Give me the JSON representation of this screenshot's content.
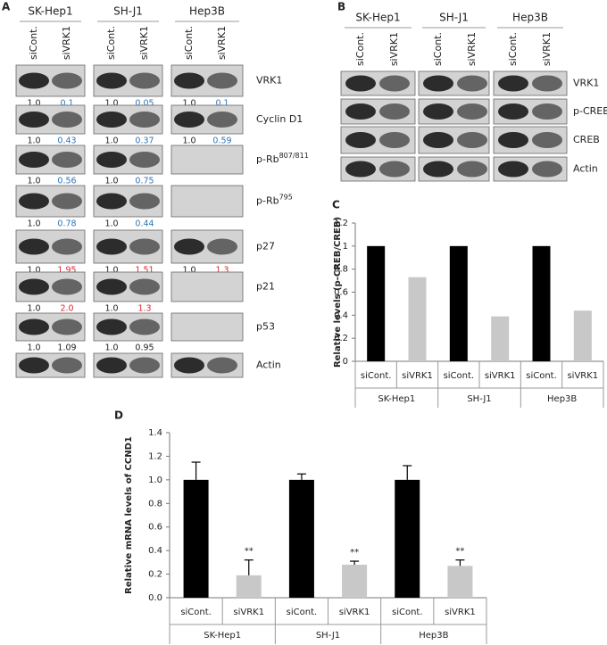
{
  "panel_a": {
    "label": "A",
    "groups": [
      {
        "name": "SK-Hep1",
        "lanes": [
          "siCont.",
          "siVRK1"
        ]
      },
      {
        "name": "SH-J1",
        "lanes": [
          "siCont.",
          "siVRK1"
        ]
      },
      {
        "name": "Hep3B",
        "lanes": [
          "siCont.",
          "siVRK1"
        ]
      }
    ],
    "rows": [
      {
        "name": "VRK1",
        "color": "#2e75b6",
        "quant": [
          [
            "1.0",
            "0.1"
          ],
          [
            "1.0",
            "0.05"
          ],
          [
            "1.0",
            "0.1"
          ]
        ]
      },
      {
        "name": "Cyclin D1",
        "color": "#2e75b6",
        "quant": [
          [
            "1.0",
            "0.43"
          ],
          [
            "1.0",
            "0.37"
          ],
          [
            "1.0",
            "0.59"
          ]
        ]
      },
      {
        "name": "p-Rb",
        "sup": "807/811",
        "color": "#2e75b6",
        "quant": [
          [
            "1.0",
            "0.56"
          ],
          [
            "1.0",
            "0.75"
          ],
          null
        ]
      },
      {
        "name": "p-Rb",
        "sup": "795",
        "color": "#2e75b6",
        "quant": [
          [
            "1.0",
            "0.78"
          ],
          [
            "1.0",
            "0.44"
          ],
          null
        ]
      },
      {
        "name": "p27",
        "color": "#e0262b",
        "quant": [
          [
            "1.0",
            "1.95"
          ],
          [
            "1.0",
            "1.51"
          ],
          [
            "1.0",
            "1.3"
          ]
        ]
      },
      {
        "name": "p21",
        "color": "#e0262b",
        "quant": [
          [
            "1.0",
            "2.0"
          ],
          [
            "1.0",
            "1.3"
          ],
          null
        ]
      },
      {
        "name": "p53",
        "color": "#222222",
        "quant": [
          [
            "1.0",
            "1.09"
          ],
          [
            "1.0",
            "0.95"
          ],
          null
        ]
      },
      {
        "name": "Actin"
      }
    ]
  },
  "panel_b": {
    "label": "B",
    "groups": [
      {
        "name": "SK-Hep1",
        "lanes": [
          "siCont.",
          "siVRK1"
        ]
      },
      {
        "name": "SH-J1",
        "lanes": [
          "siCont.",
          "siVRK1"
        ]
      },
      {
        "name": "Hep3B",
        "lanes": [
          "siCont.",
          "siVRK1"
        ]
      }
    ],
    "rows": [
      {
        "name": "VRK1"
      },
      {
        "name": "p-CREB"
      },
      {
        "name": "CREB"
      },
      {
        "name": "Actin"
      }
    ]
  },
  "chart_data": [
    {
      "type": "bar",
      "label": "C",
      "y_label": "Relative levels (p-CREB/CREB)",
      "categories": [
        "siCont.",
        "siVRK1",
        "siCont.",
        "siVRK1",
        "siCont.",
        "siVRK1"
      ],
      "groups": [
        "SK-Hep1",
        "SH-J1",
        "Hep3B"
      ],
      "values": [
        1,
        0.73,
        1,
        0.39,
        1,
        0.44
      ],
      "colors": [
        "#000000",
        "#c8c8c8",
        "#000000",
        "#c8c8c8",
        "#000000",
        "#c8c8c8"
      ],
      "ylim": [
        0,
        1.2
      ],
      "yticks": [
        0,
        0.2,
        0.4,
        0.6,
        0.8,
        1,
        1.2
      ]
    },
    {
      "type": "bar",
      "label": "D",
      "y_label": "Relative mRNA levels of CCND1",
      "categories": [
        "siCont.",
        "siVRK1",
        "siCont.",
        "siVRK1",
        "siCont.",
        "siVRK1"
      ],
      "groups": [
        "SK-Hep1",
        "SH-J1",
        "Hep3B"
      ],
      "values": [
        1,
        0.19,
        1,
        0.28,
        1,
        0.27
      ],
      "errors": [
        0.15,
        0.13,
        0.05,
        0.03,
        0.12,
        0.05
      ],
      "annotations": [
        null,
        "**",
        null,
        "**",
        null,
        "**"
      ],
      "colors": [
        "#000000",
        "#c8c8c8",
        "#000000",
        "#c8c8c8",
        "#000000",
        "#c8c8c8"
      ],
      "ylim": [
        0,
        1.4
      ],
      "yticks": [
        {
          "value": 0,
          "label": "0.0"
        },
        0.2,
        0.4,
        0.6,
        0.8,
        {
          "value": 1,
          "label": "1.0"
        },
        1.2,
        1.4
      ]
    }
  ]
}
